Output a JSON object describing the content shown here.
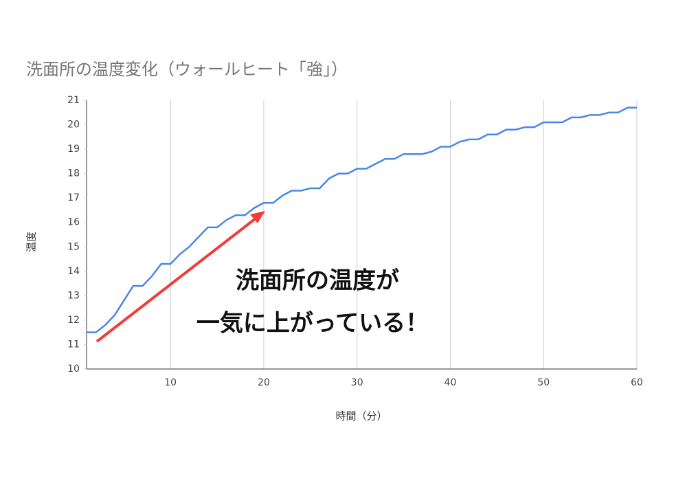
{
  "chart_data": {
    "type": "line",
    "title": "洗面所の温度変化（ウォールヒート「強」）",
    "x_label": "時間（分）",
    "y_label": "温度",
    "annotations": [
      "洗面所の温度が",
      "一気に上がっている！"
    ],
    "x": [
      1,
      2,
      3,
      4,
      5,
      6,
      7,
      8,
      9,
      10,
      11,
      12,
      13,
      14,
      15,
      16,
      17,
      18,
      19,
      20,
      21,
      22,
      23,
      24,
      25,
      26,
      27,
      28,
      29,
      30,
      31,
      32,
      33,
      34,
      35,
      36,
      37,
      38,
      39,
      40,
      41,
      42,
      43,
      44,
      45,
      46,
      47,
      48,
      49,
      50,
      51,
      52,
      53,
      54,
      55,
      56,
      57,
      58,
      59,
      60
    ],
    "series": [
      {
        "name": "温度",
        "color": "#4a86e8",
        "values": [
          11.5,
          11.5,
          11.8,
          12.2,
          12.8,
          13.4,
          13.4,
          13.8,
          14.3,
          14.3,
          14.7,
          15.0,
          15.4,
          15.8,
          15.8,
          16.1,
          16.3,
          16.3,
          16.6,
          16.8,
          16.8,
          17.1,
          17.3,
          17.3,
          17.4,
          17.4,
          17.8,
          18.0,
          18.0,
          18.2,
          18.2,
          18.4,
          18.6,
          18.6,
          18.8,
          18.8,
          18.8,
          18.9,
          19.1,
          19.1,
          19.3,
          19.4,
          19.4,
          19.6,
          19.6,
          19.8,
          19.8,
          19.9,
          19.9,
          20.1,
          20.1,
          20.1,
          20.3,
          20.3,
          20.4,
          20.4,
          20.5,
          20.5,
          20.7,
          20.7
        ]
      }
    ],
    "xlim": [
      1,
      60
    ],
    "ylim": [
      10,
      21
    ],
    "xticks": [
      10,
      20,
      30,
      40,
      50,
      60
    ],
    "yticks": [
      10,
      11,
      12,
      13,
      14,
      15,
      16,
      17,
      18,
      19,
      20,
      21
    ],
    "grid": "x"
  }
}
